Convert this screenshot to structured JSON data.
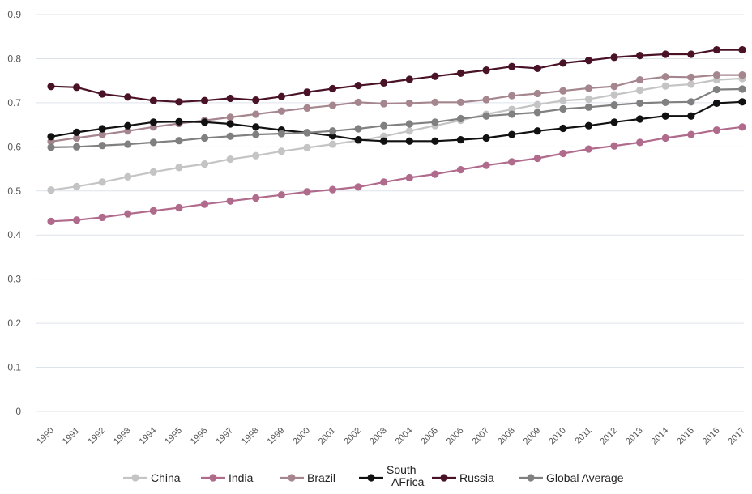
{
  "chart_data": {
    "type": "line",
    "title": "",
    "xlabel": "",
    "ylabel": "",
    "ylim": [
      0,
      0.9
    ],
    "y_ticks": [
      "0",
      "0.1",
      "0.2",
      "0.3",
      "0.4",
      "0.5",
      "0.6",
      "0.7",
      "0.8",
      "0.9"
    ],
    "y_tick_values": [
      0,
      0.1,
      0.2,
      0.3,
      0.4,
      0.5,
      0.6,
      0.7,
      0.8,
      0.9
    ],
    "grid": "horizontal",
    "legend_position": "bottom",
    "x": [
      "1990",
      "1991",
      "1992",
      "1993",
      "1994",
      "1995",
      "1996",
      "1997",
      "1998",
      "1999",
      "2000",
      "2001",
      "2002",
      "2003",
      "2004",
      "2005",
      "2006",
      "2007",
      "2008",
      "2009",
      "2010",
      "2011",
      "2012",
      "2013",
      "2014",
      "2015",
      "2016",
      "2017"
    ],
    "series": [
      {
        "name": "China",
        "color": "#c4c4c4",
        "values": [
          0.502,
          0.51,
          0.52,
          0.532,
          0.543,
          0.553,
          0.561,
          0.572,
          0.58,
          0.59,
          0.598,
          0.606,
          0.614,
          0.624,
          0.636,
          0.648,
          0.66,
          0.674,
          0.685,
          0.696,
          0.705,
          0.708,
          0.718,
          0.728,
          0.738,
          0.742,
          0.752,
          0.755
        ]
      },
      {
        "name": "India",
        "color": "#b06a8c",
        "values": [
          0.431,
          0.434,
          0.44,
          0.448,
          0.455,
          0.462,
          0.47,
          0.477,
          0.484,
          0.491,
          0.498,
          0.503,
          0.509,
          0.52,
          0.53,
          0.538,
          0.548,
          0.558,
          0.566,
          0.574,
          0.585,
          0.595,
          0.602,
          0.61,
          0.62,
          0.628,
          0.638,
          0.645
        ]
      },
      {
        "name": "Brazil",
        "color": "#a5858e",
        "values": [
          0.612,
          0.62,
          0.628,
          0.636,
          0.645,
          0.653,
          0.66,
          0.667,
          0.674,
          0.681,
          0.688,
          0.694,
          0.701,
          0.698,
          0.699,
          0.701,
          0.701,
          0.707,
          0.716,
          0.721,
          0.727,
          0.733,
          0.737,
          0.752,
          0.759,
          0.758,
          0.763,
          0.763
        ]
      },
      {
        "name": "South AFrica",
        "color": "#111111",
        "values": [
          0.623,
          0.633,
          0.641,
          0.648,
          0.656,
          0.657,
          0.656,
          0.652,
          0.645,
          0.638,
          0.632,
          0.625,
          0.616,
          0.613,
          0.613,
          0.613,
          0.616,
          0.62,
          0.628,
          0.636,
          0.642,
          0.648,
          0.656,
          0.663,
          0.67,
          0.67,
          0.699,
          0.702
        ]
      },
      {
        "name": "Russia",
        "color": "#4a1226",
        "values": [
          0.737,
          0.735,
          0.72,
          0.713,
          0.705,
          0.702,
          0.705,
          0.71,
          0.706,
          0.714,
          0.724,
          0.732,
          0.739,
          0.745,
          0.753,
          0.76,
          0.767,
          0.774,
          0.782,
          0.778,
          0.79,
          0.796,
          0.803,
          0.807,
          0.81,
          0.81,
          0.82,
          0.82
        ]
      },
      {
        "name": "Global Average",
        "color": "#808080",
        "values": [
          0.599,
          0.6,
          0.603,
          0.606,
          0.61,
          0.614,
          0.62,
          0.624,
          0.628,
          0.63,
          0.632,
          0.636,
          0.641,
          0.648,
          0.652,
          0.656,
          0.664,
          0.67,
          0.674,
          0.678,
          0.686,
          0.69,
          0.695,
          0.699,
          0.701,
          0.702,
          0.73,
          0.731
        ]
      }
    ],
    "legend_entries": [
      "China",
      "India",
      "Brazil",
      "South AFrica",
      "Russia",
      "Global Average"
    ]
  }
}
